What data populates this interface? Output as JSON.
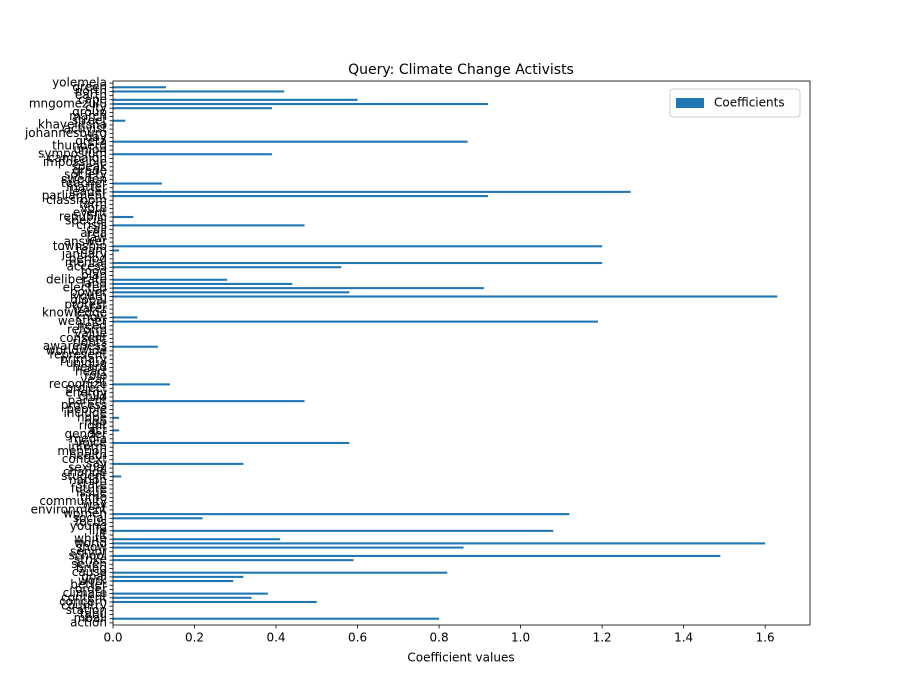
{
  "chart_data": {
    "type": "barh",
    "title": "Query: Climate Change Activists",
    "xlabel": "Coefficient values",
    "categories": [
      "action",
      "mbali",
      "tabu",
      "station",
      "country",
      "concern",
      "content",
      "climate",
      "order",
      "better",
      "work",
      "goal",
      "cause",
      "bring",
      "seven",
      "strike",
      "school",
      "senior",
      "show",
      "world",
      "white",
      "it",
      "life",
      "young",
      "focus",
      "social",
      "women",
      "environment",
      "way",
      "community",
      "time",
      "issue",
      "future",
      "state",
      "nation",
      "student",
      "change",
      "sexual",
      "say",
      "context",
      "health",
      "mention",
      "inform",
      "voice",
      "media",
      "gender",
      "act",
      "right",
      "ngo",
      "hope",
      "include",
      "people",
      "process",
      "parent",
      "child",
      "energy",
      "project",
      "recognize",
      "year",
      "role",
      "heart",
      "heard",
      "unique",
      "primary",
      "represent",
      "worldwide",
      "awareness",
      "rights",
      "consent",
      "value",
      "reform",
      "need",
      "weather",
      "know",
      "knowledge",
      "water",
      "protest",
      "global",
      "youth",
      "power",
      "elected",
      "land",
      "deliberate",
      "plan",
      "food",
      "access",
      "mental",
      "period",
      "january",
      "team",
      "township",
      "answer",
      "law",
      "area",
      "call",
      "crisis",
      "special",
      "republic",
      "event",
      "vote",
      "farm",
      "classroom",
      "parliament",
      "leader",
      "matter",
      "teacher",
      "sweden",
      "society",
      "grade",
      "speak",
      "impossible",
      "campaign",
      "symposium",
      "union",
      "thunberg",
      "greta",
      "day",
      "johannesburg",
      "activist",
      "khayelitsha",
      "street",
      "march",
      "group",
      "city",
      "mngomezulu",
      "cape",
      "earth",
      "north",
      "green",
      "yolemela"
    ],
    "series": [
      {
        "name": "Coefficients",
        "color": "#1f77b4",
        "values": [
          0,
          0.8,
          0,
          0,
          0,
          0.5,
          0.34,
          0.38,
          0,
          0,
          0.295,
          0.32,
          0.82,
          0,
          0,
          0.59,
          1.49,
          0,
          0.86,
          1.6,
          0.41,
          0,
          1.08,
          0,
          0,
          0.22,
          1.12,
          0,
          0,
          0,
          0,
          0,
          0,
          0,
          0,
          0.02,
          0,
          0,
          0.32,
          0,
          0,
          0,
          0,
          0.58,
          0,
          0,
          0.015,
          0,
          0,
          0.015,
          0,
          0,
          0,
          0.47,
          0,
          0,
          0,
          0.14,
          0,
          0,
          0,
          0,
          0,
          0,
          0,
          0,
          0.11,
          0,
          0,
          0,
          0,
          0,
          1.19,
          0.06,
          0,
          0,
          0,
          0,
          1.63,
          0.58,
          0.91,
          0.44,
          0.28,
          0,
          0,
          0.56,
          1.2,
          0,
          0,
          0.015,
          1.2,
          0,
          0,
          0,
          0,
          0.47,
          0,
          0.05,
          0,
          0,
          0,
          0,
          0.92,
          1.27,
          0,
          0.12,
          0,
          0,
          0,
          0,
          0,
          0,
          0.39,
          0,
          0,
          0.87,
          0,
          0,
          0,
          0,
          0.03,
          0,
          0,
          0.39,
          0.92,
          0.6,
          0,
          0.42,
          0.13,
          0
        ]
      }
    ],
    "xlim": [
      0,
      1.71
    ],
    "xticks": [
      {
        "value": 0,
        "label": "0.0"
      },
      0.2,
      0.4,
      0.6,
      0.8,
      {
        "value": 1.0,
        "label": "1.0"
      },
      1.2,
      1.4,
      1.6
    ],
    "legend": "upper right"
  }
}
